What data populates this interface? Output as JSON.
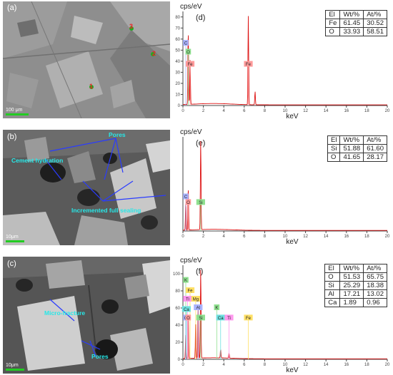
{
  "panels": [
    {
      "id": "a",
      "label": "(a)",
      "scale_bar": "100 μm",
      "spots": [
        "1",
        "2",
        "3"
      ]
    },
    {
      "id": "b",
      "label": "(b)",
      "scale_bar": "10μm",
      "annotations": [
        "Pores",
        "Cement hydration",
        "Incremented full sealing"
      ]
    },
    {
      "id": "c",
      "label": "(c)",
      "scale_bar": "10μm",
      "annotations": [
        "Micro-fracture",
        "Pores"
      ]
    }
  ],
  "chart_data": [
    {
      "type": "line",
      "panel_label": "(d)",
      "ylabel": "cps/eV",
      "xlabel": "keV",
      "x_ticks": [
        "0",
        "2",
        "4",
        "6",
        "8",
        "10",
        "12",
        "14",
        "16",
        "18",
        "20"
      ],
      "y_ticks": [
        "0",
        "10",
        "20",
        "30",
        "40",
        "50",
        "60",
        "70",
        "80"
      ],
      "ylim": [
        0,
        85
      ],
      "xlim": [
        0,
        20
      ],
      "peaks": [
        {
          "x": 0.52,
          "y": 68,
          "color": "#d11"
        },
        {
          "x": 0.7,
          "y": 40,
          "color": "#d11"
        },
        {
          "x": 6.4,
          "y": 80,
          "color": "#d11"
        },
        {
          "x": 7.06,
          "y": 12,
          "color": "#d11"
        }
      ],
      "element_labels": [
        {
          "text": "C",
          "x": 0.28,
          "y": 56,
          "bg": "#aab4ff"
        },
        {
          "text": "O",
          "x": 0.52,
          "y": 48,
          "bg": "#8fe08f"
        },
        {
          "text": "Fe",
          "x": 0.7,
          "y": 37,
          "bg": "#ff9a9a"
        },
        {
          "text": "Fe",
          "x": 6.4,
          "y": 37,
          "bg": "#ff9a9a"
        }
      ],
      "table": {
        "headers": [
          "El",
          "Wt/%",
          "At/%"
        ],
        "rows": [
          [
            "Fe",
            "61.45",
            "30.52"
          ],
          [
            "O",
            "33.93",
            "58.51"
          ]
        ]
      }
    },
    {
      "type": "line",
      "panel_label": "(e)",
      "ylabel": "cps/eV",
      "xlabel": "keV",
      "x_ticks": [
        "0",
        "2",
        "4",
        "6",
        "8",
        "10",
        "12",
        "14",
        "16",
        "18",
        "20"
      ],
      "y_ticks": [],
      "ylim": [
        0,
        100
      ],
      "xlim": [
        0,
        20
      ],
      "peaks": [
        {
          "x": 0.28,
          "y": 30,
          "color": "#d11"
        },
        {
          "x": 0.52,
          "y": 46,
          "color": "#d11"
        },
        {
          "x": 1.74,
          "y": 96,
          "color": "#d11"
        }
      ],
      "element_labels": [
        {
          "text": "C",
          "x": 0.28,
          "y": 36,
          "bg": "#aab4ff"
        },
        {
          "text": "O",
          "x": 0.52,
          "y": 30,
          "bg": "#ff9a9a"
        },
        {
          "text": "Si",
          "x": 1.74,
          "y": 30,
          "bg": "#8fe08f"
        }
      ],
      "table": {
        "headers": [
          "El",
          "Wt/%",
          "At/%"
        ],
        "rows": [
          [
            "Si",
            "51.88",
            "61.60"
          ],
          [
            "O",
            "41.65",
            "28.17"
          ]
        ]
      }
    },
    {
      "type": "line",
      "panel_label": "(f)",
      "ylabel": "cps/eV",
      "xlabel": "keV",
      "x_ticks": [
        "0",
        "2",
        "4",
        "6",
        "8",
        "10",
        "12",
        "14",
        "16",
        "18",
        "20"
      ],
      "y_ticks": [
        "0",
        "20",
        "40",
        "60",
        "80",
        "100"
      ],
      "ylim": [
        0,
        110
      ],
      "xlim": [
        0,
        20
      ],
      "peaks": [
        {
          "x": 0.28,
          "y": 30,
          "color": "#d11"
        },
        {
          "x": 0.52,
          "y": 55,
          "color": "#d11"
        },
        {
          "x": 1.25,
          "y": 45,
          "color": "#d11"
        },
        {
          "x": 1.49,
          "y": 65,
          "color": "#d11"
        },
        {
          "x": 1.74,
          "y": 105,
          "color": "#d11"
        },
        {
          "x": 3.69,
          "y": 10,
          "color": "#d11"
        },
        {
          "x": 4.51,
          "y": 6,
          "color": "#d11"
        }
      ],
      "element_labels": [
        {
          "text": "K",
          "x": 0.28,
          "y": 92,
          "bg": "#8fe08f"
        },
        {
          "text": "Fe",
          "x": 0.7,
          "y": 80,
          "bg": "#ffe066"
        },
        {
          "text": "Ti",
          "x": 0.45,
          "y": 70,
          "bg": "#ff99ee"
        },
        {
          "text": "Mg",
          "x": 1.25,
          "y": 70,
          "bg": "#ffe066"
        },
        {
          "text": "Ca",
          "x": 0.34,
          "y": 58,
          "bg": "#6ee0e0"
        },
        {
          "text": "Al",
          "x": 1.49,
          "y": 60,
          "bg": "#aab4ff"
        },
        {
          "text": "C",
          "x": 0.28,
          "y": 48,
          "bg": "#aab4ff"
        },
        {
          "text": "O",
          "x": 0.52,
          "y": 48,
          "bg": "#ff9a9a"
        },
        {
          "text": "Si",
          "x": 1.74,
          "y": 48,
          "bg": "#8fe08f"
        },
        {
          "text": "K",
          "x": 3.31,
          "y": 60,
          "bg": "#8fe08f"
        },
        {
          "text": "Ca",
          "x": 3.69,
          "y": 48,
          "bg": "#6ee0e0"
        },
        {
          "text": "Ti",
          "x": 4.51,
          "y": 48,
          "bg": "#ff99ee"
        },
        {
          "text": "Fe",
          "x": 6.4,
          "y": 48,
          "bg": "#ffe066"
        }
      ],
      "table": {
        "headers": [
          "El",
          "Wt/%",
          "At/%"
        ],
        "rows": [
          [
            "O",
            "51.53",
            "65.75"
          ],
          [
            "Si",
            "25.29",
            "18.38"
          ],
          [
            "Al",
            "17.21",
            "13.02"
          ],
          [
            "Ca",
            "1.89",
            "0.96"
          ]
        ]
      }
    }
  ]
}
